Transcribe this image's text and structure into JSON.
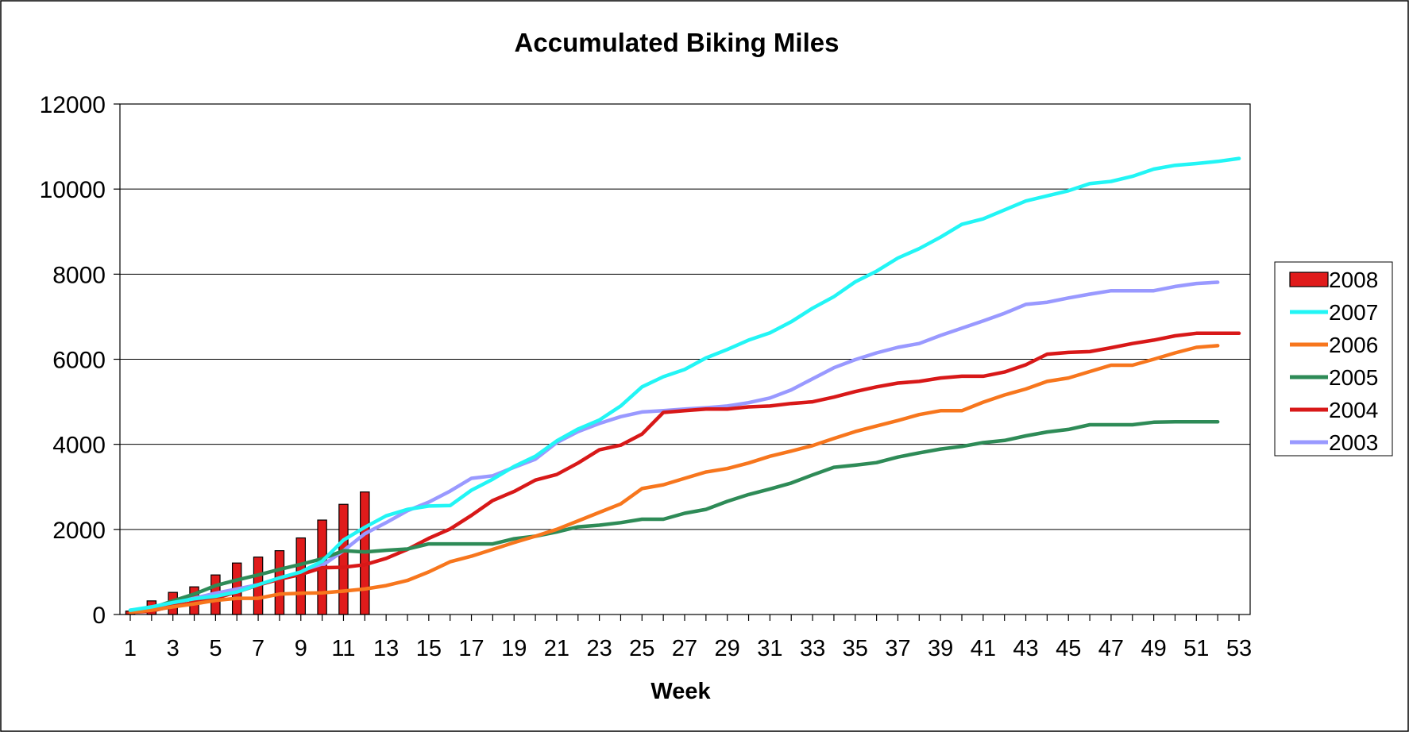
{
  "chart_data": {
    "type": "line",
    "title": "Accumulated Biking Miles",
    "xlabel": "Week",
    "ylabel": "",
    "ylim": [
      0,
      12000
    ],
    "y_ticks": [
      "0",
      "2000",
      "4000",
      "6000",
      "8000",
      "10000",
      "12000"
    ],
    "x_range": [
      1,
      53
    ],
    "x_tick_labels": [
      "1",
      "3",
      "5",
      "7",
      "9",
      "11",
      "13",
      "15",
      "17",
      "19",
      "21",
      "23",
      "25",
      "27",
      "29",
      "31",
      "33",
      "35",
      "37",
      "39",
      "41",
      "43",
      "45",
      "47",
      "49",
      "51",
      "53"
    ],
    "grid": "horizontal",
    "legend_position": "right",
    "series": [
      {
        "name": "2008",
        "kind": "bar",
        "color": "#e01b1b",
        "x": [
          1,
          2,
          3,
          4,
          5,
          6,
          7,
          8,
          9,
          10,
          11,
          12
        ],
        "values": [
          80,
          320,
          520,
          650,
          930,
          1210,
          1350,
          1500,
          1800,
          2220,
          2590,
          2880
        ]
      },
      {
        "name": "2007",
        "kind": "line",
        "color": "#22f5f5",
        "values": [
          100,
          180,
          280,
          370,
          430,
          530,
          700,
          860,
          1000,
          1250,
          1750,
          2050,
          2320,
          2470,
          2550,
          2560,
          2920,
          3180,
          3480,
          3720,
          4080,
          4360,
          4570,
          4900,
          5350,
          5590,
          5760,
          6030,
          6230,
          6450,
          6620,
          6880,
          7200,
          7470,
          7820,
          8070,
          8380,
          8600,
          8870,
          9170,
          9300,
          9510,
          9720,
          9840,
          9960,
          10130,
          10180,
          10300,
          10470,
          10560,
          10600,
          10650,
          10720
        ]
      },
      {
        "name": "2006",
        "kind": "line",
        "color": "#f7761d",
        "values": [
          50,
          100,
          180,
          250,
          330,
          380,
          380,
          480,
          500,
          510,
          550,
          600,
          680,
          800,
          1000,
          1240,
          1370,
          1530,
          1690,
          1840,
          2000,
          2200,
          2400,
          2600,
          2960,
          3050,
          3200,
          3350,
          3430,
          3560,
          3720,
          3840,
          3970,
          4140,
          4300,
          4430,
          4560,
          4700,
          4790,
          4790,
          4990,
          5160,
          5300,
          5480,
          5560,
          5710,
          5860,
          5860,
          6000,
          6150,
          6280,
          6320
        ]
      },
      {
        "name": "2005",
        "kind": "line",
        "color": "#2e8b57",
        "values": [
          80,
          150,
          320,
          480,
          680,
          810,
          930,
          1060,
          1180,
          1310,
          1500,
          1470,
          1510,
          1540,
          1660,
          1660,
          1660,
          1660,
          1780,
          1840,
          1940,
          2060,
          2100,
          2160,
          2240,
          2240,
          2380,
          2470,
          2660,
          2820,
          2950,
          3090,
          3280,
          3460,
          3510,
          3570,
          3700,
          3800,
          3890,
          3950,
          4040,
          4090,
          4200,
          4290,
          4350,
          4460,
          4460,
          4460,
          4520,
          4530,
          4530,
          4530
        ]
      },
      {
        "name": "2004",
        "kind": "line",
        "color": "#d81818",
        "values": [
          50,
          80,
          200,
          280,
          380,
          530,
          690,
          830,
          940,
          1100,
          1110,
          1170,
          1320,
          1530,
          1790,
          2010,
          2330,
          2680,
          2890,
          3160,
          3290,
          3560,
          3870,
          3980,
          4240,
          4750,
          4790,
          4830,
          4830,
          4880,
          4900,
          4960,
          5000,
          5110,
          5240,
          5350,
          5440,
          5480,
          5560,
          5600,
          5600,
          5700,
          5870,
          6120,
          6160,
          6180,
          6270,
          6370,
          6450,
          6550,
          6610,
          6610,
          6610
        ]
      },
      {
        "name": "2003",
        "kind": "line",
        "color": "#9999ff",
        "values": [
          100,
          150,
          280,
          380,
          500,
          600,
          700,
          830,
          950,
          1150,
          1500,
          1900,
          2160,
          2440,
          2640,
          2900,
          3200,
          3260,
          3460,
          3650,
          4040,
          4300,
          4490,
          4650,
          4760,
          4790,
          4830,
          4860,
          4900,
          4980,
          5090,
          5280,
          5540,
          5800,
          5990,
          6150,
          6280,
          6370,
          6560,
          6730,
          6900,
          7080,
          7290,
          7340,
          7440,
          7530,
          7610,
          7610,
          7610,
          7710,
          7780,
          7810
        ]
      }
    ]
  }
}
